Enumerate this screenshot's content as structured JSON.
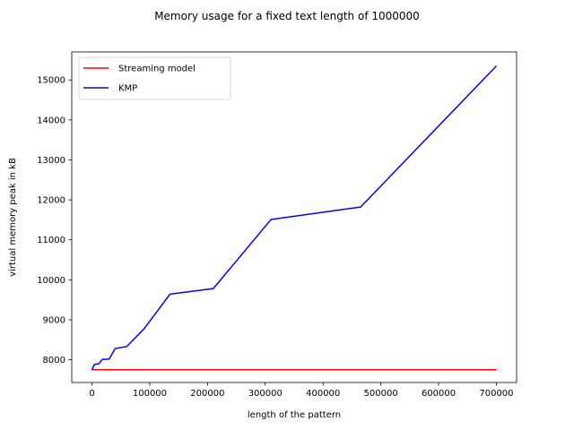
{
  "chart_data": {
    "type": "line",
    "title": "Memory usage for a fixed text length of 1000000",
    "xlabel": "length of the pattern",
    "ylabel": "virtual memory peak in kB",
    "xlim": [
      -35000,
      735000
    ],
    "ylim": [
      7430,
      15700
    ],
    "x_ticks": [
      0,
      100000,
      200000,
      300000,
      400000,
      500000,
      600000,
      700000
    ],
    "x_tick_labels": [
      "0",
      "100000",
      "200000",
      "300000",
      "400000",
      "500000",
      "600000",
      "700000"
    ],
    "y_ticks": [
      8000,
      9000,
      10000,
      11000,
      12000,
      13000,
      14000,
      15000
    ],
    "y_tick_labels": [
      "8000",
      "9000",
      "10000",
      "11000",
      "12000",
      "13000",
      "14000",
      "15000"
    ],
    "grid": false,
    "legend_position": "upper-left",
    "series": [
      {
        "name": "Streaming model",
        "color": "#ff0000",
        "x": [
          0,
          700000
        ],
        "y": [
          7750,
          7750
        ]
      },
      {
        "name": "KMP",
        "color": "#0000ff",
        "x": [
          0,
          4000,
          8000,
          12000,
          18000,
          25000,
          30000,
          40000,
          60000,
          90000,
          135000,
          210000,
          310000,
          465000,
          700000
        ],
        "y": [
          7750,
          7880,
          7890,
          7900,
          8010,
          8010,
          8020,
          8280,
          8330,
          8770,
          9640,
          9780,
          11510,
          11820,
          15350
        ]
      }
    ]
  }
}
